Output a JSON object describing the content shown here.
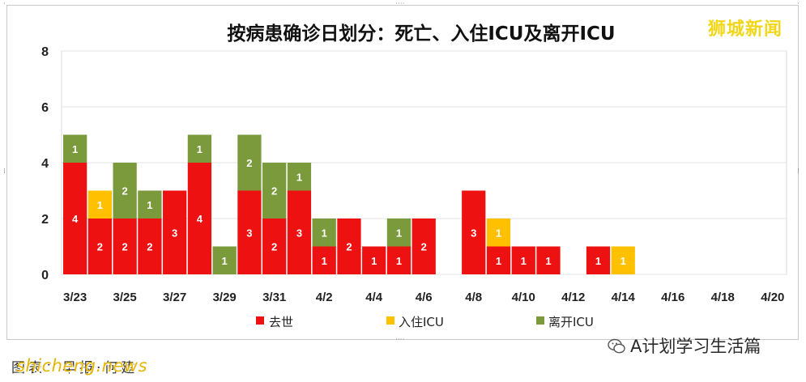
{
  "title": "按病患确诊日划分：死亡、入住ICU及离开ICU",
  "brand": "狮城新闻",
  "caption": "图表：早报·何建",
  "watermark": "shicheng.news",
  "account": "A计划学习生活篇",
  "colors": {
    "death": "#ee1111",
    "icu_in": "#ffc000",
    "icu_out": "#7a9a3c"
  },
  "chart_data": {
    "type": "bar",
    "stacked": true,
    "title": "按病患确诊日划分：死亡、入住ICU及离开ICU",
    "ylim": [
      0,
      8
    ],
    "yticks": [
      0,
      2,
      4,
      6,
      8
    ],
    "grid": true,
    "legend_position": "bottom",
    "x_tick_labels": [
      "3/23",
      "3/25",
      "3/27",
      "3/29",
      "3/31",
      "4/2",
      "4/4",
      "4/6",
      "4/8",
      "4/10",
      "4/12",
      "4/14",
      "4/16",
      "4/18",
      "4/20"
    ],
    "categories": [
      "3/23",
      "3/24",
      "3/25",
      "3/26",
      "3/27",
      "3/28",
      "3/29",
      "3/30",
      "3/31",
      "4/1",
      "4/2",
      "4/3",
      "4/4",
      "4/5",
      "4/6",
      "4/7",
      "4/8",
      "4/9",
      "4/10",
      "4/11",
      "4/12",
      "4/13",
      "4/14",
      "4/15",
      "4/16",
      "4/17",
      "4/18",
      "4/19",
      "4/20"
    ],
    "series": [
      {
        "name": "去世",
        "color": "#ee1111",
        "values": [
          4,
          2,
          2,
          2,
          3,
          4,
          0,
          3,
          2,
          3,
          1,
          2,
          1,
          1,
          2,
          0,
          3,
          1,
          1,
          1,
          0,
          1,
          0,
          0,
          0,
          0,
          0,
          0,
          0
        ]
      },
      {
        "name": "入住ICU",
        "color": "#ffc000",
        "values": [
          0,
          1,
          0,
          0,
          0,
          0,
          0,
          0,
          0,
          0,
          0,
          0,
          0,
          0,
          0,
          0,
          0,
          1,
          0,
          0,
          0,
          0,
          1,
          0,
          0,
          0,
          0,
          0,
          0
        ]
      },
      {
        "name": "离开ICU",
        "color": "#7a9a3c",
        "values": [
          1,
          0,
          2,
          1,
          0,
          1,
          1,
          2,
          2,
          1,
          1,
          0,
          0,
          1,
          0,
          0,
          0,
          0,
          0,
          0,
          0,
          0,
          0,
          0,
          0,
          0,
          0,
          0,
          0
        ]
      }
    ]
  }
}
